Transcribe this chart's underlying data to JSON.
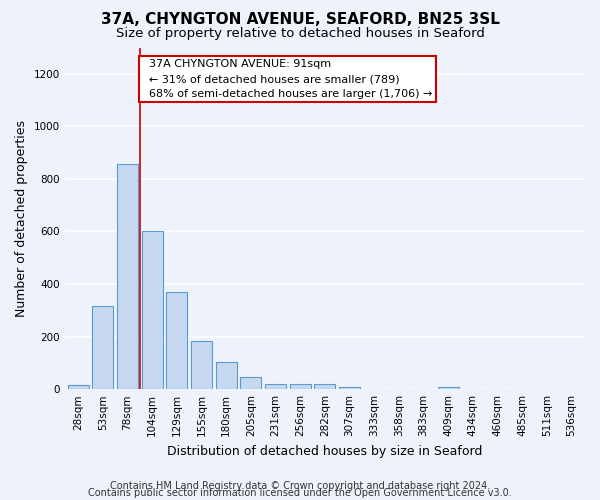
{
  "title_line1": "37A, CHYNGTON AVENUE, SEAFORD, BN25 3SL",
  "title_line2": "Size of property relative to detached houses in Seaford",
  "xlabel": "Distribution of detached houses by size in Seaford",
  "ylabel": "Number of detached properties",
  "bin_labels": [
    "28sqm",
    "53sqm",
    "78sqm",
    "104sqm",
    "129sqm",
    "155sqm",
    "180sqm",
    "205sqm",
    "231sqm",
    "256sqm",
    "282sqm",
    "307sqm",
    "333sqm",
    "358sqm",
    "383sqm",
    "409sqm",
    "434sqm",
    "460sqm",
    "485sqm",
    "511sqm",
    "536sqm"
  ],
  "bar_heights": [
    15,
    315,
    855,
    600,
    370,
    185,
    105,
    45,
    20,
    18,
    20,
    10,
    0,
    0,
    0,
    10,
    0,
    0,
    0,
    0,
    0
  ],
  "bar_color": "#c5d8f0",
  "bar_edge_color": "#5b9bd5",
  "annotation_text": "  37A CHYNGTON AVENUE: 91sqm\n  ← 31% of detached houses are smaller (789)\n  68% of semi-detached houses are larger (1,706) →",
  "vline_x_idx": 2.5,
  "vline_color": "#cc0000",
  "annotation_box_color": "#ffffff",
  "annotation_box_edge": "#cc0000",
  "ylim": [
    0,
    1300
  ],
  "yticks": [
    0,
    200,
    400,
    600,
    800,
    1000,
    1200
  ],
  "footer_line1": "Contains HM Land Registry data © Crown copyright and database right 2024.",
  "footer_line2": "Contains public sector information licensed under the Open Government Licence v3.0.",
  "bg_color": "#eef2fa",
  "grid_color": "#ffffff",
  "title_fontsize": 11,
  "subtitle_fontsize": 9.5,
  "axis_label_fontsize": 9,
  "tick_fontsize": 7.5,
  "annot_fontsize": 8,
  "footer_fontsize": 7
}
